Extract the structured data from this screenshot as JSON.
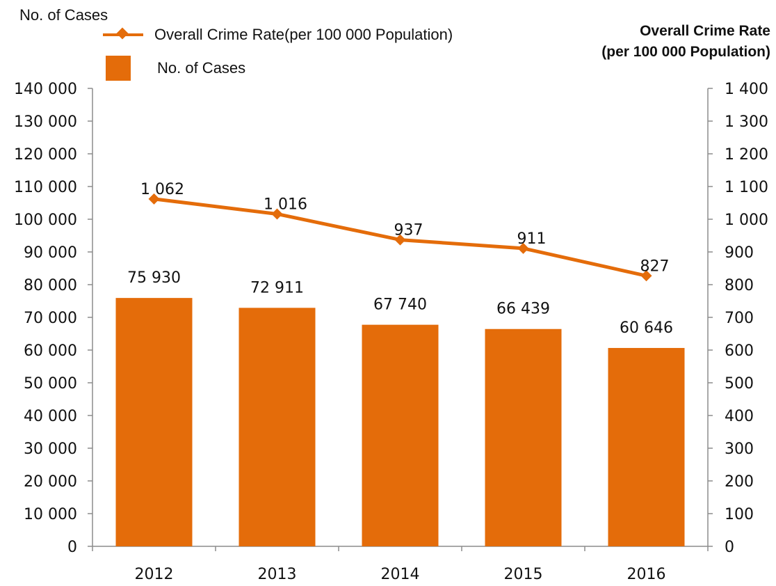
{
  "colors": {
    "bar": "#e46c0a",
    "line": "#e46c0a",
    "axis": "#8c8c8c",
    "text": "#111111"
  },
  "left_axis_title": "No. of Cases",
  "right_axis_title": [
    "Overall Crime Rate",
    "(per 100 000  Population)"
  ],
  "legend": {
    "line_label": "Overall Crime Rate(per 100 000  Population)",
    "bar_label": "No. of Cases"
  },
  "chart_data": {
    "type": "bar",
    "categories": [
      "2012",
      "2013",
      "2014",
      "2015",
      "2016"
    ],
    "series": [
      {
        "name": "No. of Cases",
        "type": "bar",
        "axis": "left",
        "values": [
          75930,
          72911,
          67740,
          66439,
          60646
        ],
        "labels": [
          "75 930",
          "72 911",
          "67 740",
          "66 439",
          "60 646"
        ]
      },
      {
        "name": "Overall Crime Rate(per 100 000  Population)",
        "type": "line",
        "axis": "right",
        "values": [
          1062,
          1016,
          937,
          911,
          827
        ],
        "labels": [
          "1 062",
          "1 016",
          "937",
          "911",
          "827"
        ]
      }
    ],
    "ylim_left": [
      0,
      140000
    ],
    "ylim_right": [
      0,
      1400
    ],
    "yticks_left": [
      "0",
      "10 000",
      "20 000",
      "30 000",
      "40 000",
      "50 000",
      "60 000",
      "70 000",
      "80 000",
      "90 000",
      "100 000",
      "110 000",
      "120 000",
      "130 000",
      "140 000"
    ],
    "yticks_right": [
      "0",
      "100",
      "200",
      "300",
      "400",
      "500",
      "600",
      "700",
      "800",
      "900",
      "1 000",
      "1 100",
      "1 200",
      "1 300",
      "1 400"
    ],
    "grid": false,
    "legend_position": "top-left"
  }
}
